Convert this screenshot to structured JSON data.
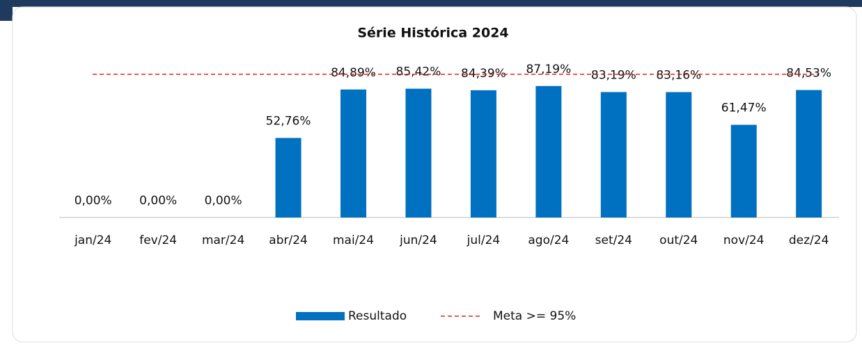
{
  "chart_data": {
    "type": "bar",
    "title": "Série Histórica 2024",
    "categories": [
      "jan/24",
      "fev/24",
      "mar/24",
      "abr/24",
      "mai/24",
      "jun/24",
      "jul/24",
      "ago/24",
      "set/24",
      "out/24",
      "nov/24",
      "dez/24"
    ],
    "series": [
      {
        "name": "Resultado",
        "color": "#0070c0",
        "values": [
          0,
          0,
          0,
          52.76,
          84.89,
          85.42,
          84.39,
          87.19,
          83.19,
          83.16,
          61.47,
          84.53
        ],
        "value_labels": [
          "0,00%",
          "0,00%",
          "0,00%",
          "52,76%",
          "84,89%",
          "85,42%",
          "84,39%",
          "87,19%",
          "83,19%",
          "83,16%",
          "61,47%",
          "84,53%"
        ]
      }
    ],
    "target": {
      "name": "Meta >= 95%",
      "value": 95,
      "color": "#e02020"
    },
    "ylim": [
      0,
      100
    ]
  }
}
